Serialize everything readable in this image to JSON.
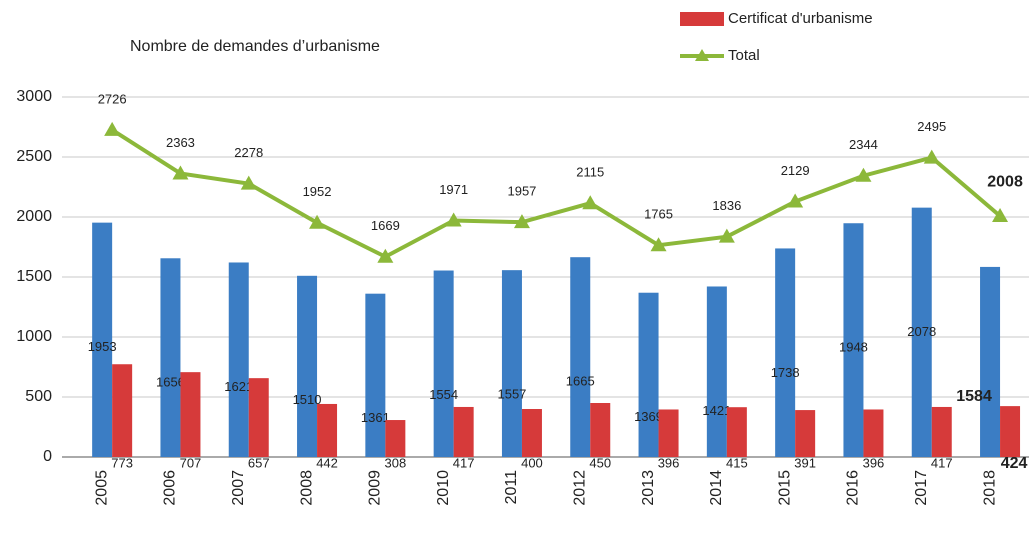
{
  "chart_data": {
    "type": "bar_line",
    "title": "Nombre de demandes d’urbanisme",
    "categories": [
      "2005",
      "2006",
      "2007",
      "2008",
      "2009",
      "2010",
      "2011",
      "2012",
      "2013",
      "2014",
      "2015",
      "2016",
      "2017",
      "2018"
    ],
    "series": [
      {
        "color": "#3b7dc4",
        "kind": "bar",
        "values": [
          1953,
          1656,
          1621,
          1510,
          1361,
          1554,
          1557,
          1665,
          1369,
          1421,
          1738,
          1948,
          2078,
          1584
        ]
      },
      {
        "name": "Certificat d'urbanisme",
        "color": "#d63a3a",
        "kind": "bar",
        "values": [
          773,
          707,
          657,
          442,
          308,
          417,
          400,
          450,
          396,
          415,
          391,
          396,
          417,
          424
        ]
      },
      {
        "name": "Total",
        "color": "#8cb83a",
        "kind": "line",
        "values": [
          2726,
          2363,
          2278,
          1952,
          1669,
          1971,
          1957,
          2115,
          1765,
          1836,
          2129,
          2344,
          2495,
          2008
        ]
      }
    ],
    "ylim": [
      0,
      3000
    ],
    "yticks": [
      0,
      500,
      1000,
      1500,
      2000,
      2500,
      3000
    ],
    "grid": true
  }
}
